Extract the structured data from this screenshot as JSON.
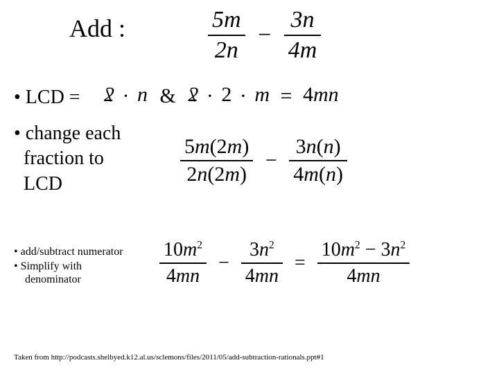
{
  "title": "Add :",
  "bullets": {
    "lcd": "•  LCD =",
    "change_l1": "• change each",
    "change_l2": "fraction to",
    "change_l3": "LCD",
    "small1": "•   add/subtract numerator",
    "small2_l1": "•   Simplify with",
    "small2_l2": "denominator"
  },
  "math": {
    "top": {
      "f1_num": "5m",
      "f1_den": "2n",
      "minus": "−",
      "f2_num": "3n",
      "f2_den": "4m"
    },
    "lcd": {
      "two1": "2",
      "dot": "·",
      "n": "n",
      "amp": "&",
      "two2": "2",
      "two3": "2",
      "m": "m",
      "eq": "=",
      "rhs": "4mn"
    },
    "change": {
      "f1_num": "5m(2m)",
      "f1_den": "2n(2m)",
      "minus": "−",
      "f2_num": "3n(n)",
      "f2_den": "4m(n)"
    },
    "result": {
      "f1_num_a": "10m",
      "f1_num_b": "2",
      "f1_den": "4mn",
      "minus": "−",
      "f2_num_a": "3n",
      "f2_num_b": "2",
      "f2_den": "4mn",
      "eq": "=",
      "f3_num_a": "10m",
      "f3_num_b": "2",
      "f3_num_c": " − 3n",
      "f3_num_d": "2",
      "f3_den": "4mn"
    }
  },
  "footer": "Taken from http://podcasts.shelbyed.k12.al.us/sclemons/files/2011/05/add-subtraction-rationals.ppt#1"
}
